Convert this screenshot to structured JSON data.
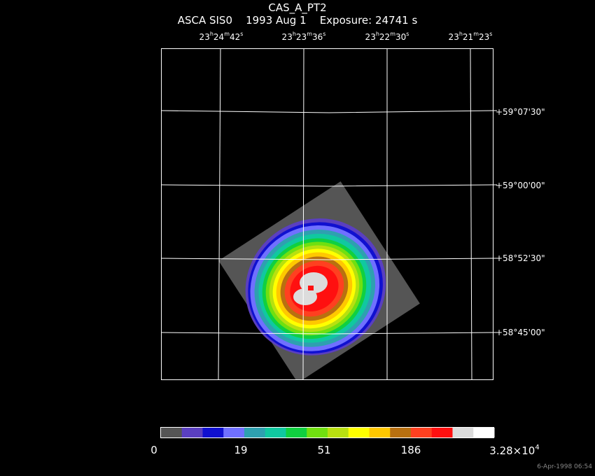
{
  "header": {
    "object_name": "CAS_A_PT2",
    "instrument": "ASCA SIS0",
    "date": "1993 Aug  1",
    "exposure": "Exposure: 24741 s"
  },
  "ra_ticks": [
    {
      "h": "23",
      "m": "24",
      "s": "42"
    },
    {
      "h": "23",
      "m": "23",
      "s": "36"
    },
    {
      "h": "23",
      "m": "22",
      "s": "30"
    },
    {
      "h": "23",
      "m": "21",
      "s": "23"
    }
  ],
  "dec_ticks": [
    "+59°07'30\"",
    "+59°00'00\"",
    "+58°52'30\"",
    "+58°45'00\""
  ],
  "colorbar": {
    "colors": [
      "#555555",
      "#5a3fc0",
      "#1010d0",
      "#7070ff",
      "#2ea0b0",
      "#10c8a0",
      "#10d040",
      "#70e010",
      "#b8e010",
      "#ffff00",
      "#ffc800",
      "#b87010",
      "#ff4020",
      "#ff1010",
      "#dcdcdc",
      "#ffffff"
    ],
    "labels": [
      "0",
      "19",
      "51",
      "186"
    ],
    "max_label_base": "3.28×10",
    "max_label_exp": "4"
  },
  "footer": {
    "timestamp": "6-Apr-1998 06:54"
  }
}
